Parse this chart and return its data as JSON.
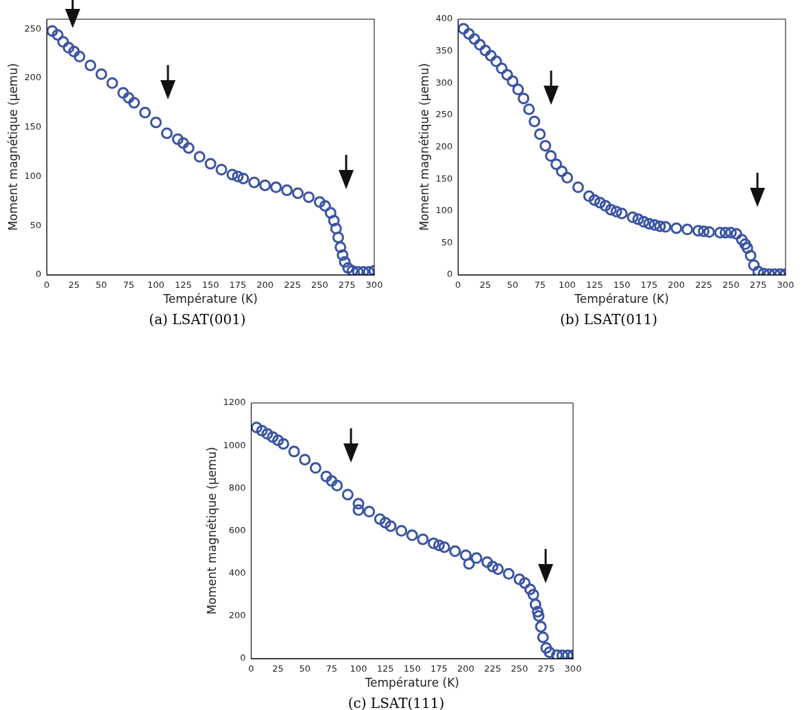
{
  "chart_data": [
    {
      "type": "scatter",
      "title": "(a) LSAT(001)",
      "xlabel": "Température (K)",
      "ylabel": "Moment magnétique (μemu)",
      "color": "#3a53a4",
      "marker": "circle",
      "grid": false,
      "x": [
        5,
        10,
        15,
        20,
        25,
        30,
        40,
        50,
        60,
        70,
        75,
        80,
        90,
        100,
        110,
        120,
        125,
        130,
        140,
        150,
        160,
        170,
        175,
        180,
        190,
        200,
        210,
        220,
        230,
        240,
        250,
        255,
        260,
        263,
        265,
        267,
        269,
        271,
        273,
        276,
        280,
        285,
        290,
        295,
        300
      ],
      "values": [
        248,
        244,
        237,
        231,
        227,
        222,
        213,
        204,
        195,
        185,
        180,
        175,
        165,
        155,
        144,
        138,
        134,
        129,
        120,
        113,
        107,
        102,
        100,
        98,
        94,
        91,
        89,
        86,
        83,
        79,
        74,
        70,
        63,
        55,
        47,
        38,
        28,
        20,
        13,
        7,
        4,
        3,
        3,
        3,
        4
      ],
      "xlim": [
        0,
        300
      ],
      "ylim": [
        0,
        260
      ],
      "xticks": [
        0,
        25,
        50,
        75,
        100,
        125,
        150,
        175,
        200,
        225,
        250,
        275,
        300
      ],
      "yticks": [
        0,
        50,
        100,
        150,
        200,
        250
      ]
    },
    {
      "type": "scatter",
      "title": "(b) LSAT(011)",
      "xlabel": "Température (K)",
      "ylabel": "Moment magnétique (μemu)",
      "color": "#3a53a4",
      "marker": "circle",
      "grid": false,
      "x": [
        5,
        10,
        15,
        20,
        25,
        30,
        35,
        40,
        45,
        50,
        55,
        60,
        65,
        70,
        75,
        80,
        85,
        90,
        95,
        100,
        110,
        120,
        125,
        130,
        135,
        140,
        145,
        150,
        160,
        165,
        170,
        175,
        180,
        185,
        190,
        200,
        210,
        220,
        225,
        230,
        240,
        245,
        250,
        255,
        260,
        263,
        265,
        268,
        271,
        275,
        280,
        285,
        290,
        295,
        300
      ],
      "values": [
        385,
        377,
        369,
        360,
        351,
        343,
        334,
        323,
        313,
        303,
        290,
        276,
        259,
        240,
        220,
        202,
        186,
        173,
        162,
        152,
        137,
        123,
        117,
        113,
        108,
        102,
        99,
        96,
        90,
        87,
        83,
        80,
        78,
        76,
        75,
        73,
        71,
        69,
        68,
        67,
        66,
        66,
        66,
        64,
        55,
        48,
        42,
        30,
        15,
        5,
        2,
        1,
        1,
        1,
        1
      ],
      "xlim": [
        0,
        300
      ],
      "ylim": [
        0,
        400
      ],
      "xticks": [
        0,
        25,
        50,
        75,
        100,
        125,
        150,
        175,
        200,
        225,
        250,
        275,
        300
      ],
      "yticks": [
        0,
        50,
        100,
        150,
        200,
        250,
        300,
        350,
        400
      ]
    },
    {
      "type": "scatter",
      "title": "(c) LSAT(111)",
      "xlabel": "Température (K)",
      "ylabel": "Moment magnétique (μemu)",
      "color": "#3a53a4",
      "marker": "circle",
      "grid": false,
      "x": [
        5,
        10,
        15,
        20,
        25,
        30,
        40,
        50,
        60,
        70,
        75,
        80,
        90,
        100,
        100,
        110,
        120,
        125,
        130,
        140,
        150,
        160,
        170,
        175,
        180,
        190,
        200,
        203,
        210,
        220,
        225,
        230,
        240,
        250,
        255,
        260,
        263,
        265,
        267,
        268,
        270,
        272,
        275,
        278,
        285,
        290,
        295,
        300
      ],
      "values": [
        1085,
        1070,
        1055,
        1040,
        1025,
        1008,
        972,
        934,
        895,
        855,
        834,
        812,
        770,
        727,
        697,
        690,
        655,
        638,
        622,
        600,
        579,
        560,
        541,
        532,
        523,
        504,
        485,
        445,
        472,
        453,
        432,
        420,
        398,
        372,
        355,
        325,
        300,
        254,
        220,
        200,
        150,
        100,
        50,
        30,
        16,
        15,
        15,
        15
      ],
      "xlim": [
        0,
        300
      ],
      "ylim": [
        0,
        1200
      ],
      "xticks": [
        0,
        25,
        50,
        75,
        100,
        125,
        150,
        175,
        200,
        225,
        250,
        275,
        300
      ],
      "yticks": [
        0,
        200,
        400,
        600,
        800,
        1000,
        1200
      ]
    }
  ]
}
